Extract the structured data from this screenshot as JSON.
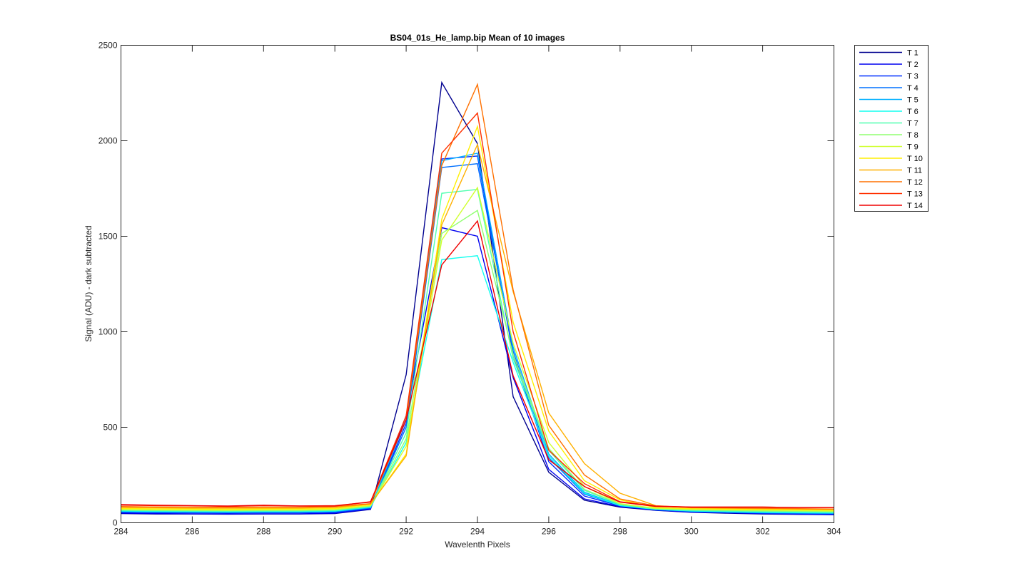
{
  "chart_data": {
    "type": "line",
    "title": "BS04_01s_He_lamp.bip  Mean of 10 images",
    "xlabel": "Wavelenth Pixels",
    "ylabel": "Signal (ADU) - dark subtracted",
    "xlim": [
      284,
      304
    ],
    "ylim": [
      0,
      2500
    ],
    "xticks": [
      284,
      286,
      288,
      290,
      292,
      294,
      296,
      298,
      300,
      302,
      304
    ],
    "yticks": [
      0,
      500,
      1000,
      1500,
      2000,
      2500
    ],
    "grid": false,
    "legend_position": "outside-top-right",
    "x": [
      284,
      285,
      286,
      287,
      288,
      289,
      290,
      291,
      292,
      293,
      294,
      295,
      296,
      297,
      298,
      299,
      300,
      301,
      302,
      303,
      304
    ],
    "series": [
      {
        "name": "T 1",
        "color": "#00008F",
        "values": [
          48,
          46,
          46,
          45,
          46,
          46,
          48,
          70,
          775,
          2305,
          1985,
          660,
          265,
          118,
          82,
          65,
          55,
          50,
          46,
          44,
          42
        ]
      },
      {
        "name": "T 2",
        "color": "#0000EF",
        "values": [
          50,
          48,
          47,
          46,
          47,
          47,
          50,
          72,
          560,
          1545,
          1500,
          760,
          280,
          125,
          85,
          66,
          56,
          52,
          48,
          45,
          43
        ]
      },
      {
        "name": "T 3",
        "color": "#0030FF",
        "values": [
          55,
          53,
          52,
          51,
          52,
          52,
          55,
          75,
          520,
          1905,
          1920,
          880,
          320,
          140,
          88,
          68,
          58,
          54,
          50,
          48,
          46
        ]
      },
      {
        "name": "T 4",
        "color": "#0070FF",
        "values": [
          58,
          56,
          55,
          54,
          55,
          55,
          58,
          78,
          500,
          1860,
          1880,
          900,
          340,
          150,
          90,
          70,
          60,
          56,
          52,
          50,
          48
        ]
      },
      {
        "name": "T 5",
        "color": "#00B0FF",
        "values": [
          60,
          58,
          57,
          56,
          57,
          57,
          60,
          80,
          540,
          1895,
          1935,
          920,
          360,
          160,
          92,
          70,
          62,
          58,
          54,
          52,
          50
        ]
      },
      {
        "name": "T 6",
        "color": "#10FFEF",
        "values": [
          62,
          60,
          59,
          58,
          59,
          59,
          62,
          82,
          420,
          1378,
          1398,
          840,
          350,
          155,
          90,
          70,
          62,
          58,
          55,
          53,
          52
        ]
      },
      {
        "name": "T 7",
        "color": "#50FFAF",
        "values": [
          65,
          63,
          62,
          61,
          62,
          62,
          65,
          85,
          470,
          1725,
          1745,
          860,
          380,
          170,
          95,
          72,
          65,
          62,
          60,
          58,
          56
        ]
      },
      {
        "name": "T 8",
        "color": "#90FF70",
        "values": [
          68,
          66,
          65,
          64,
          65,
          65,
          68,
          88,
          440,
          1515,
          1635,
          880,
          390,
          175,
          98,
          74,
          68,
          65,
          62,
          60,
          58
        ]
      },
      {
        "name": "T 9",
        "color": "#D0FF30",
        "values": [
          70,
          68,
          67,
          66,
          67,
          67,
          70,
          90,
          400,
          1480,
          1755,
          940,
          420,
          190,
          100,
          76,
          70,
          68,
          66,
          64,
          62
        ]
      },
      {
        "name": "T 10",
        "color": "#FFEF00",
        "values": [
          75,
          73,
          72,
          71,
          72,
          72,
          75,
          95,
          360,
          1590,
          2075,
          1050,
          480,
          220,
          120,
          80,
          74,
          72,
          70,
          68,
          66
        ]
      },
      {
        "name": "T 11",
        "color": "#FFB000",
        "values": [
          80,
          78,
          77,
          76,
          77,
          77,
          80,
          98,
          350,
          1560,
          1980,
          1210,
          575,
          310,
          155,
          90,
          78,
          76,
          74,
          72,
          70
        ]
      },
      {
        "name": "T 12",
        "color": "#FF7000",
        "values": [
          85,
          83,
          82,
          81,
          82,
          82,
          85,
          100,
          540,
          1870,
          2295,
          1220,
          510,
          250,
          125,
          88,
          80,
          78,
          76,
          74,
          72
        ]
      },
      {
        "name": "T 13",
        "color": "#FF3000",
        "values": [
          92,
          90,
          89,
          86,
          90,
          88,
          90,
          108,
          560,
          1935,
          2145,
          1000,
          380,
          205,
          110,
          88,
          82,
          82,
          82,
          80,
          80
        ]
      },
      {
        "name": "T 14",
        "color": "#EF0000",
        "values": [
          95,
          92,
          90,
          88,
          92,
          88,
          88,
          110,
          540,
          1350,
          1580,
          770,
          330,
          190,
          108,
          86,
          82,
          82,
          82,
          80,
          80
        ]
      }
    ]
  }
}
